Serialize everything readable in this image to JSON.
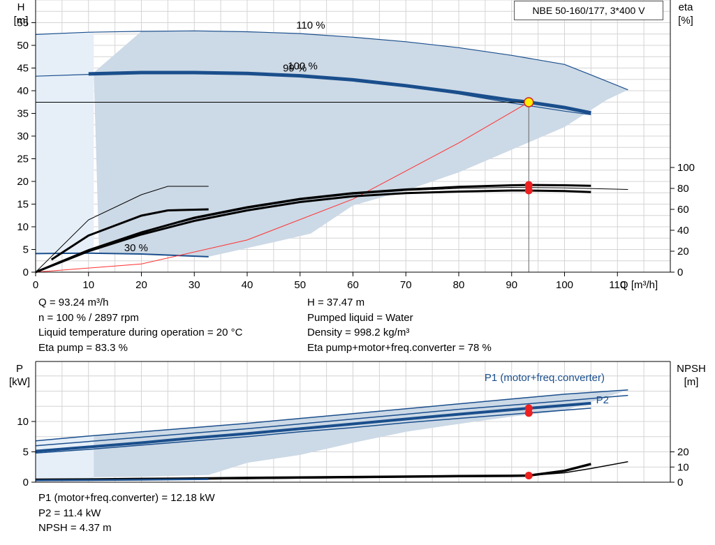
{
  "header": {
    "title": "NBE 50-160/177, 3*400 V"
  },
  "top_info": {
    "left": [
      "Q = 93.24 m³/h",
      "n = 100 % / 2897 rpm",
      "Liquid temperature during operation = 20 °C",
      "Eta pump = 83.3 %"
    ],
    "right": [
      "H = 37.47 m",
      "Pumped liquid = Water",
      "Density = 998.2 kg/m³",
      "Eta pump+motor+freq.converter = 78 %"
    ]
  },
  "bottom_info": [
    "P1 (motor+freq.converter) = 12.18 kW",
    "P2 = 11.4 kW",
    "NPSH = 4.37 m"
  ],
  "colors": {
    "curve_blue": "#1a4e8c",
    "area_fill": "#ccd9e6",
    "area_light": "#e6eff8",
    "grid": "#d4d4d4",
    "point_red": "#ee2020",
    "point_yellow": "#ffee00"
  },
  "chart_data": [
    {
      "type": "line",
      "title": "",
      "xlabel": "Q [m³/h]",
      "ylabel": "H [m]",
      "y2label": "eta [%]",
      "xlim": [
        0,
        120
      ],
      "ylim": [
        0,
        60
      ],
      "y2lim": [
        0,
        300
      ],
      "x_ticks": [
        0,
        10,
        20,
        30,
        40,
        50,
        60,
        70,
        80,
        90,
        100,
        110
      ],
      "y_ticks": [
        0,
        5,
        10,
        15,
        20,
        25,
        30,
        35,
        40,
        45,
        50,
        55
      ],
      "y2_ticks": [
        0,
        20,
        40,
        60,
        80,
        100
      ],
      "grid": true,
      "annotations": [
        {
          "text": "110 %",
          "x": 52,
          "y": 54.5
        },
        {
          "text": "100 %",
          "x": 50.5,
          "y": 45.5
        },
        {
          "text": "99 %",
          "x": 49,
          "y": 45
        },
        {
          "text": "30 %",
          "x": 19,
          "y": 5.4
        }
      ],
      "operating_point": {
        "q": 93.24,
        "h": 37.47,
        "eta": 83.3
      },
      "series": [
        {
          "kind": "head",
          "style": "thin",
          "x": [
            0,
            10,
            20,
            30,
            40,
            50,
            60,
            70,
            80,
            90,
            100,
            105,
            112
          ],
          "y": [
            52.4,
            52.9,
            53.1,
            53.2,
            53.0,
            52.6,
            51.8,
            50.8,
            49.5,
            47.8,
            45.8,
            43.5,
            40.2
          ]
        },
        {
          "kind": "head",
          "style": "thin",
          "x": [
            0,
            10,
            20,
            30,
            40,
            50,
            60,
            70,
            80,
            90,
            100,
            105
          ],
          "y": [
            43.2,
            43.6,
            43.9,
            43.9,
            43.7,
            43.1,
            42.2,
            40.9,
            39.3,
            37.3,
            35.5,
            34.7
          ]
        },
        {
          "kind": "head",
          "style": "bold",
          "x": [
            10,
            20,
            30,
            40,
            50,
            60,
            70,
            80,
            90,
            93.24,
            100,
            105
          ],
          "y": [
            43.7,
            44.0,
            44.0,
            43.8,
            43.3,
            42.4,
            41.1,
            39.6,
            37.9,
            37.47,
            36.3,
            35.1
          ]
        },
        {
          "kind": "head",
          "style": "normal",
          "x": [
            0,
            10,
            20,
            32.7
          ],
          "y": [
            4.1,
            4.2,
            4.0,
            3.4
          ]
        },
        {
          "kind": "system",
          "style": "red",
          "x": [
            0,
            20,
            40,
            60,
            80,
            93.24
          ],
          "y": [
            0,
            1.8,
            7.1,
            16.1,
            28.5,
            37.47
          ]
        },
        {
          "kind": "eta",
          "style": "thin",
          "x": [
            0,
            10,
            20,
            30,
            40,
            50,
            60,
            70,
            80,
            90,
            100,
            112
          ],
          "y": [
            0,
            20,
            38,
            51,
            61,
            69,
            74.5,
            78,
            80,
            81,
            80.5,
            79
          ]
        },
        {
          "kind": "eta",
          "style": "bold",
          "x": [
            0,
            10,
            20,
            30,
            40,
            50,
            60,
            70,
            80,
            90,
            93.24,
            100,
            105
          ],
          "y": [
            0,
            21,
            38,
            52,
            62,
            70,
            75.5,
            79,
            81.5,
            83,
            83.3,
            83,
            82.5
          ]
        },
        {
          "kind": "eta",
          "style": "bold",
          "x": [
            0,
            10,
            20,
            30,
            40,
            50,
            60,
            70,
            80,
            90,
            93.24,
            100,
            105
          ],
          "y": [
            0,
            20,
            36,
            49,
            59,
            67,
            72.5,
            75.5,
            77,
            78,
            78,
            77.5,
            76.5
          ]
        },
        {
          "kind": "eta",
          "style": "thin",
          "x": [
            0,
            10,
            20,
            25,
            32.7
          ],
          "y": [
            0,
            50,
            74,
            82,
            82
          ]
        },
        {
          "kind": "eta",
          "style": "bold",
          "x": [
            3,
            10,
            20,
            25,
            32.7
          ],
          "y": [
            12,
            35,
            54,
            59,
            60
          ]
        }
      ]
    },
    {
      "type": "line",
      "title": "",
      "xlabel": "",
      "ylabel": "P [kW]",
      "y2label": "NPSH [m]",
      "xlim": [
        0,
        120
      ],
      "ylim": [
        0,
        16
      ],
      "y2lim": [
        0,
        32
      ],
      "y_ticks": [
        0,
        5,
        10
      ],
      "y2_ticks": [
        0,
        10,
        20
      ],
      "grid": true,
      "legend": [
        "P1 (motor+freq.converter)",
        "P2"
      ],
      "operating_point": {
        "q": 93.24,
        "p1": 12.18,
        "p2": 11.4,
        "npsh": 4.37
      },
      "series": [
        {
          "name": "P1 (motor+freq.converter)",
          "style": "line",
          "x": [
            0,
            10,
            20,
            30,
            40,
            50,
            60,
            70,
            80,
            90,
            100,
            112
          ],
          "y": [
            6.8,
            7.6,
            8.3,
            9.0,
            9.7,
            10.5,
            11.3,
            12.1,
            12.9,
            13.7,
            14.5,
            15.2
          ]
        },
        {
          "name": "P1 (motor+freq.converter)",
          "style": "line",
          "x": [
            0,
            10,
            20,
            30,
            40,
            50,
            60,
            70,
            80,
            90,
            100,
            112
          ],
          "y": [
            6.0,
            6.7,
            7.4,
            8.1,
            8.8,
            9.6,
            10.4,
            11.2,
            12.0,
            12.7,
            13.4,
            14.3
          ]
        },
        {
          "name": "P1 (motor+freq.converter)",
          "style": "bold",
          "x": [
            0,
            10,
            20,
            30,
            40,
            50,
            60,
            70,
            80,
            93.24,
            105
          ],
          "y": [
            5.1,
            5.8,
            6.5,
            7.3,
            8.0,
            8.8,
            9.6,
            10.4,
            11.2,
            12.18,
            13.0
          ]
        },
        {
          "name": "P2",
          "style": "line",
          "x": [
            0,
            10,
            20,
            30,
            40,
            50,
            60,
            70,
            80,
            93.24,
            105
          ],
          "y": [
            4.8,
            5.4,
            6.1,
            6.8,
            7.5,
            8.3,
            9.0,
            9.8,
            10.5,
            11.4,
            12.2
          ]
        },
        {
          "name": "NPSH",
          "style": "thin",
          "x": [
            0,
            10,
            20,
            30,
            40,
            50,
            60,
            70,
            80,
            90,
            93.24,
            100,
            105,
            112
          ],
          "y": [
            1.2,
            1.4,
            1.7,
            2.0,
            2.3,
            2.6,
            3.0,
            3.4,
            3.8,
            4.1,
            4.37,
            6.2,
            9.0,
            13.5
          ]
        },
        {
          "name": "NPSH",
          "style": "bold",
          "x": [
            0,
            10,
            20,
            30,
            40,
            50,
            60,
            70,
            80,
            90,
            93.24,
            100,
            105
          ],
          "y": [
            1.6,
            1.8,
            2.1,
            2.4,
            2.8,
            3.1,
            3.4,
            3.7,
            4.0,
            4.2,
            4.37,
            7.5,
            12.0
          ]
        },
        {
          "name": "P1 (motor+freq.converter)",
          "style": "low",
          "x": [
            0,
            10,
            20,
            32.7
          ],
          "y": [
            0.3,
            0.35,
            0.4,
            0.5
          ]
        }
      ]
    }
  ]
}
